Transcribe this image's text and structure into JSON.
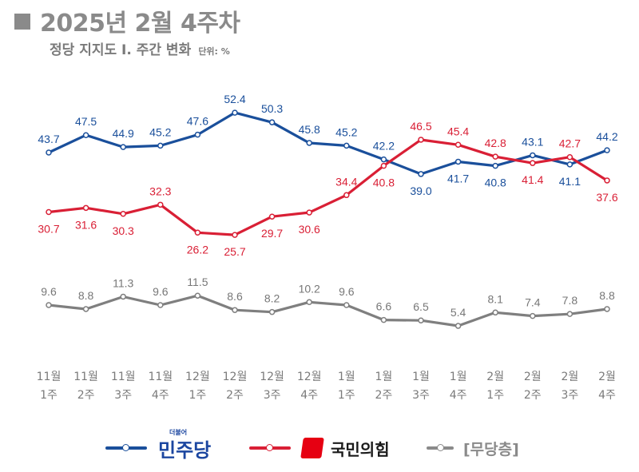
{
  "title": "2025년 2월 4주차",
  "subtitle": "정당 지지도 Ⅰ. 주간 변화",
  "unit_label": "단위: %",
  "legend": {
    "dem_small": "더불어",
    "dem_name": "민주당",
    "ppp_name": "국민의힘",
    "ind_name": "[무당층]"
  },
  "colors": {
    "dem": "#1a4f9b",
    "ppp": "#d91f35",
    "ind": "#7f7f7f"
  },
  "chart_data": {
    "type": "line",
    "x_month": [
      "11월",
      "11월",
      "11월",
      "11월",
      "12월",
      "12월",
      "12월",
      "12월",
      "1월",
      "1월",
      "1월",
      "1월",
      "2월",
      "2월",
      "2월",
      "2월"
    ],
    "x_week": [
      "1주",
      "2주",
      "3주",
      "4주",
      "1주",
      "2주",
      "3주",
      "4주",
      "1주",
      "2주",
      "3주",
      "4주",
      "1주",
      "2주",
      "3주",
      "4주"
    ],
    "series": [
      {
        "name": "민주당",
        "color": "#1a4f9b",
        "values": [
          43.7,
          47.5,
          44.9,
          45.2,
          47.6,
          52.4,
          50.3,
          45.8,
          45.2,
          42.2,
          39.0,
          41.7,
          40.8,
          43.1,
          41.1,
          44.2
        ],
        "labels": [
          "43.7",
          "47.5",
          "44.9",
          "45.2",
          "47.6",
          "52.4",
          "50.3",
          "45.8",
          "45.2",
          "42.2",
          "39.0",
          "41.7",
          "40.8",
          "43.1",
          "41.1",
          "44.2"
        ]
      },
      {
        "name": "국민의힘",
        "color": "#d91f35",
        "values": [
          30.7,
          31.6,
          30.3,
          32.3,
          26.2,
          25.7,
          29.7,
          30.6,
          34.4,
          40.8,
          46.5,
          45.4,
          42.8,
          41.4,
          42.7,
          37.6
        ],
        "labels": [
          "30.7",
          "31.6",
          "30.3",
          "32.3",
          "26.2",
          "25.7",
          "29.7",
          "30.6",
          "34.4",
          "40.8",
          "46.5",
          "45.4",
          "42.8",
          "41.4",
          "42.7",
          "37.6"
        ]
      },
      {
        "name": "무당층",
        "color": "#7f7f7f",
        "values": [
          9.6,
          8.8,
          11.3,
          9.6,
          11.5,
          8.6,
          8.2,
          10.2,
          9.6,
          6.6,
          6.5,
          5.4,
          8.1,
          7.4,
          7.8,
          8.8
        ],
        "labels": [
          "9.6",
          "8.8",
          "11.3",
          "9.6",
          "11.5",
          "8.6",
          "8.2",
          "10.2",
          "9.6",
          "6.6",
          "6.5",
          "5.4",
          "8.1",
          "7.4",
          "7.8",
          "8.8"
        ]
      }
    ],
    "grid": false,
    "legend_position": "bottom"
  }
}
